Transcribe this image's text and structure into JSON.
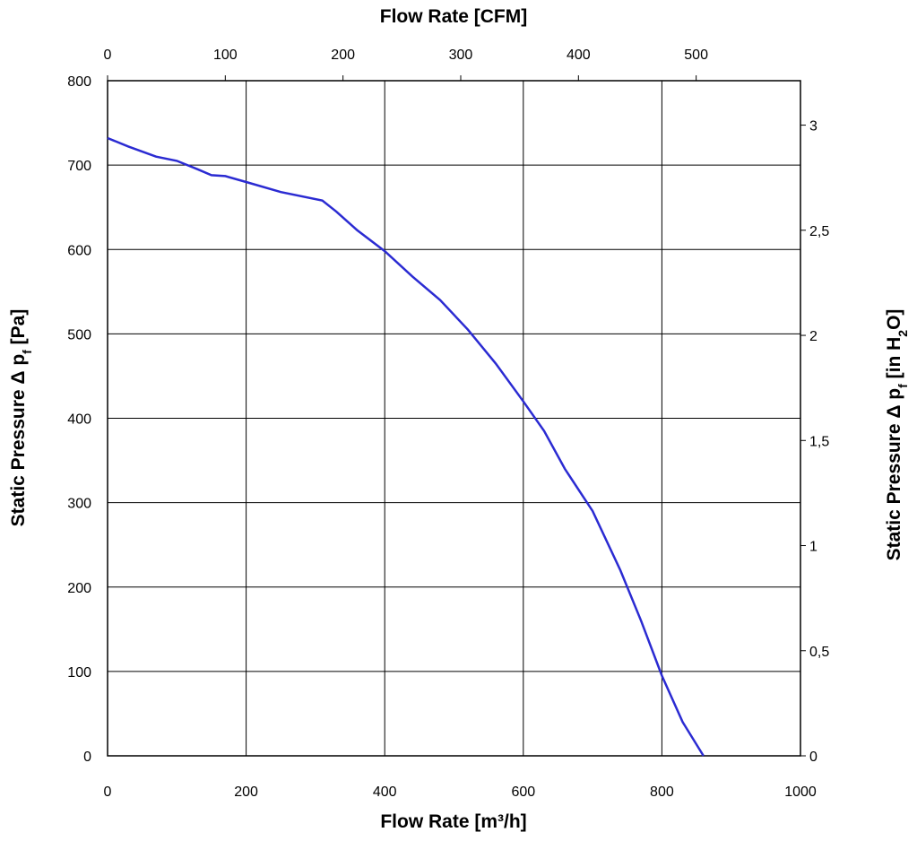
{
  "chart_data": {
    "type": "line",
    "title": "",
    "xlabel_bottom": "Flow Rate [m³/h]",
    "xlabel_top": "Flow Rate [CFM]",
    "ylabel_left": "Static Pressure Δ pf [Pa]",
    "ylabel_left_parts": {
      "main": "Static Pressure Δ p",
      "sub": "f",
      "tail": " [Pa]"
    },
    "ylabel_right_parts": {
      "main": "Static Pressure Δ p",
      "sub": "f",
      "mid": " [in H",
      "sub2": "2",
      "tail": "O]"
    },
    "xlim_bottom": [
      0,
      1000
    ],
    "xticks_bottom": [
      "0",
      "200",
      "400",
      "600",
      "800",
      "1000"
    ],
    "xlim_top": [
      0,
      588.6
    ],
    "xticks_top": [
      "0",
      "100",
      "200",
      "300",
      "400",
      "500"
    ],
    "ylim_left": [
      0,
      800
    ],
    "yticks_left": [
      "0",
      "100",
      "200",
      "300",
      "400",
      "500",
      "600",
      "700",
      "800"
    ],
    "ylim_right": [
      0,
      3.2114
    ],
    "yticks_right": [
      "0",
      "0,5",
      "1",
      "1,5",
      "2",
      "2,5",
      "3"
    ],
    "grid": true,
    "line_color": "#2b2bd2",
    "series": [
      {
        "x": [
          0,
          30,
          70,
          100,
          130,
          150,
          170,
          200,
          250,
          310,
          330,
          360,
          400,
          440,
          480,
          520,
          560,
          600,
          630,
          660,
          700,
          740,
          770,
          800,
          830,
          860
        ],
        "y": [
          732,
          722,
          710,
          705,
          695,
          688,
          687,
          680,
          668,
          658,
          645,
          623,
          598,
          568,
          540,
          505,
          465,
          420,
          385,
          340,
          290,
          220,
          160,
          95,
          40,
          0
        ]
      }
    ]
  }
}
